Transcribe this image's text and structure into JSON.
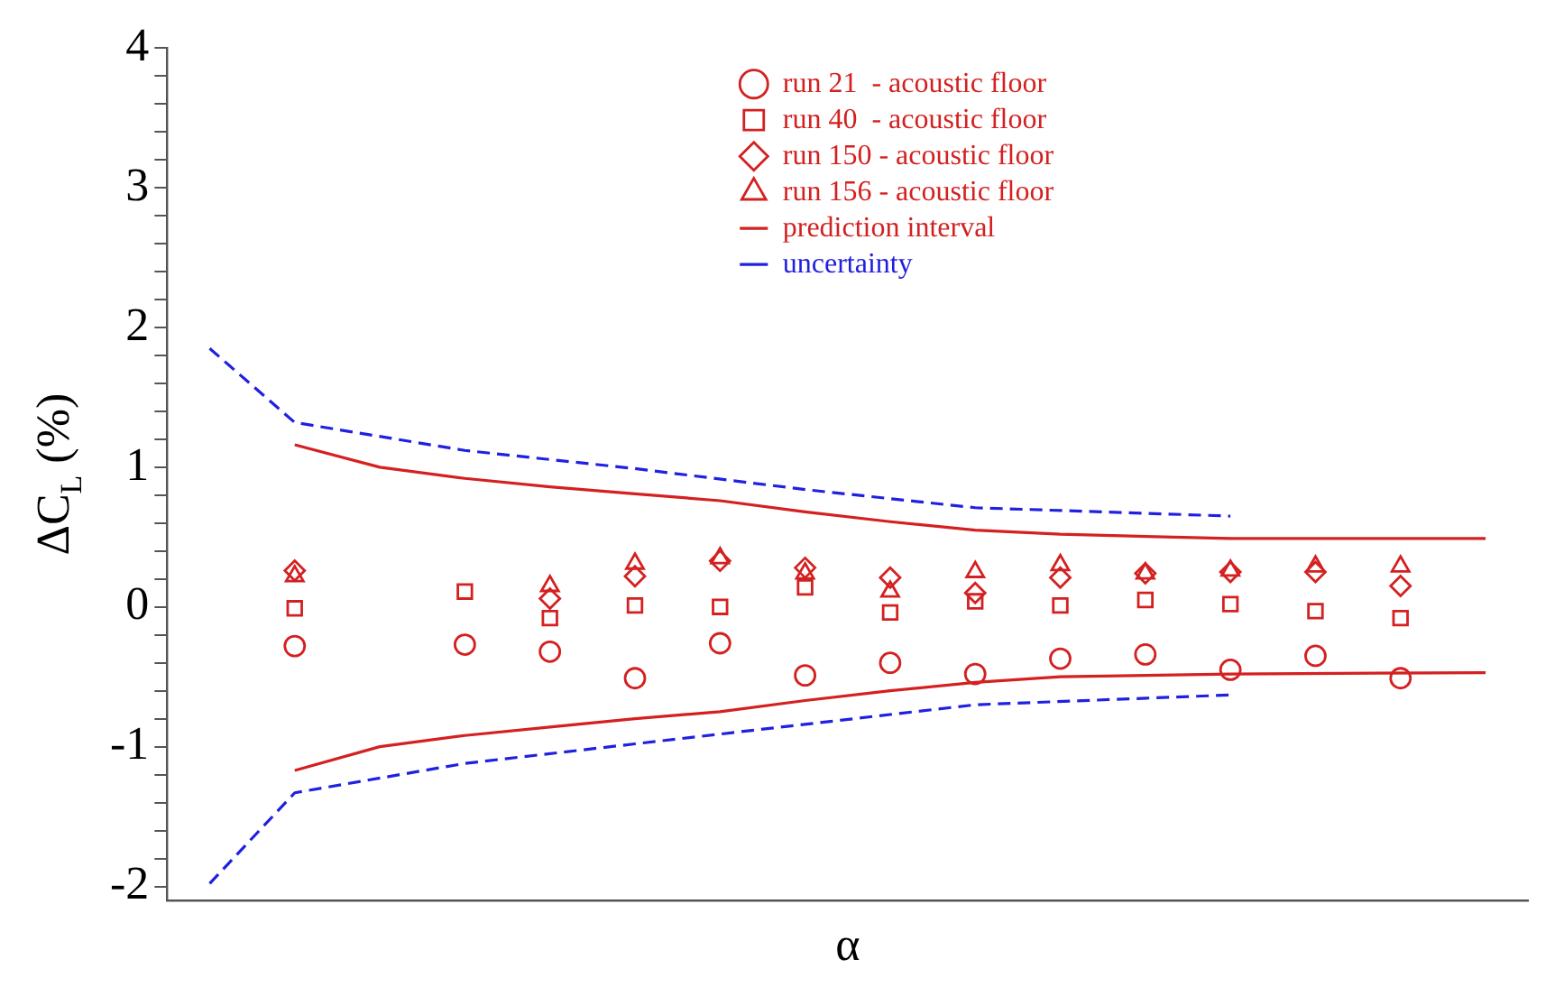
{
  "chart_data": {
    "type": "scatter",
    "xlabel": "α",
    "ylabel": "ΔC$_{L}$ (%)",
    "categories": [
      null,
      null,
      null,
      null,
      null,
      null,
      null,
      null,
      null,
      null,
      null,
      null,
      null,
      null,
      null,
      null
    ],
    "series": [
      {
        "name": "run 21  - acoustic floor",
        "color": "#d42020",
        "marker": "circle",
        "values": [
          null,
          -0.28,
          null,
          -0.27,
          -0.32,
          -0.51,
          -0.26,
          -0.49,
          -0.4,
          -0.48,
          -0.37,
          -0.34,
          -0.45,
          -0.35,
          -0.51,
          null
        ]
      },
      {
        "name": "run 40  - acoustic floor",
        "color": "#d42020",
        "marker": "square",
        "values": [
          null,
          -0.01,
          null,
          0.11,
          -0.08,
          0.01,
          0.0,
          0.14,
          -0.04,
          0.04,
          0.01,
          0.05,
          0.02,
          -0.03,
          -0.08,
          null
        ]
      },
      {
        "name": "run 150 - acoustic floor",
        "color": "#d42020",
        "marker": "diamond",
        "values": [
          null,
          0.26,
          null,
          null,
          0.06,
          0.22,
          0.33,
          0.28,
          0.21,
          0.1,
          0.21,
          0.24,
          0.25,
          0.25,
          0.15,
          null
        ]
      },
      {
        "name": "run 156 - acoustic floor",
        "color": "#d42020",
        "marker": "triangle",
        "values": [
          null,
          0.22,
          null,
          null,
          0.15,
          0.31,
          0.35,
          0.24,
          0.11,
          0.25,
          0.3,
          0.24,
          0.26,
          0.29,
          0.29,
          null
        ]
      },
      {
        "name": "prediction interval",
        "type": "line",
        "color": "#d42020",
        "line_style": "solid",
        "values": [
          null,
          1.16,
          1.0,
          0.92,
          0.86,
          0.81,
          0.76,
          0.68,
          0.61,
          0.55,
          0.52,
          null,
          0.49,
          null,
          null,
          0.49
        ]
      },
      {
        "type": "line",
        "color": "#d42020",
        "line_style": "solid",
        "values": [
          null,
          -1.17,
          -1.0,
          -0.92,
          -0.86,
          -0.8,
          -0.75,
          -0.67,
          -0.6,
          -0.54,
          -0.5,
          null,
          -0.48,
          null,
          null,
          -0.47
        ]
      },
      {
        "name": "uncertainty",
        "type": "line",
        "color": "#2020e0",
        "line_style": "dashed",
        "values": [
          1.85,
          1.32,
          null,
          1.12,
          null,
          0.99,
          null,
          0.84,
          null,
          0.71,
          null,
          null,
          0.65,
          null,
          null,
          null
        ]
      },
      {
        "type": "line",
        "color": "#2020e0",
        "line_style": "dashed",
        "values": [
          -1.98,
          -1.33,
          null,
          -1.12,
          null,
          -0.98,
          null,
          -0.84,
          null,
          -0.7,
          null,
          null,
          -0.63,
          null,
          null,
          null
        ]
      }
    ],
    "ylim": [
      -2.1,
      4
    ],
    "yticks": [
      -2,
      {
        "value": -1.8,
        "label": null
      },
      {
        "value": -1.6,
        "label": null
      },
      {
        "value": -1.4,
        "label": null
      },
      {
        "value": -1.2,
        "label": null
      },
      -1,
      {
        "value": -0.8,
        "label": null
      },
      {
        "value": -0.6,
        "label": null
      },
      {
        "value": -0.4,
        "label": null
      },
      {
        "value": -0.2,
        "label": null
      },
      0,
      {
        "value": 0.2,
        "label": null
      },
      {
        "value": 0.4,
        "label": null
      },
      {
        "value": 0.6,
        "label": null
      },
      {
        "value": 0.8,
        "label": null
      },
      1,
      {
        "value": 1.2,
        "label": null
      },
      {
        "value": 1.4,
        "label": null
      },
      {
        "value": 1.6,
        "label": null
      },
      {
        "value": 1.8,
        "label": null
      },
      2,
      {
        "value": 2.2,
        "label": null
      },
      {
        "value": 2.4,
        "label": null
      },
      {
        "value": 2.6,
        "label": null
      },
      {
        "value": 2.8,
        "label": null
      },
      3,
      {
        "value": 3.2,
        "label": null
      },
      {
        "value": 3.4,
        "label": null
      },
      {
        "value": 3.6,
        "label": null
      },
      {
        "value": 3.8,
        "label": null
      },
      4
    ],
    "tick_labels": "y",
    "grid": false,
    "legend": "top"
  }
}
